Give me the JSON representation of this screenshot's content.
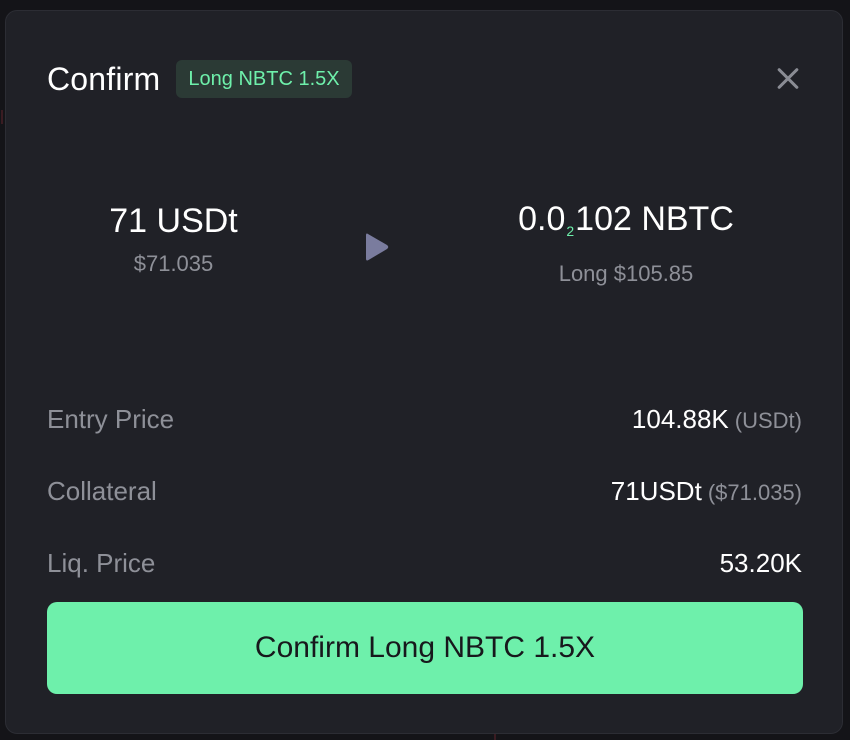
{
  "modal": {
    "title": "Confirm",
    "badge": "Long NBTC 1.5X",
    "close_icon": "close-icon"
  },
  "swap": {
    "from_amount": "71 USDt",
    "from_value": "$71.035",
    "arrow_icon": "play-arrow-icon",
    "to_amount_prefix": "0.0",
    "to_amount_subscript": "2",
    "to_amount_suffix": "102 NBTC",
    "to_value": "Long $105.85"
  },
  "details": [
    {
      "label": "Entry Price",
      "value": "104.88K",
      "value_sub": "(USDt)"
    },
    {
      "label": "Collateral",
      "value": "71USDt",
      "value_sub": "($71.035)"
    },
    {
      "label": "Liq. Price",
      "value": "53.20K",
      "value_sub": ""
    }
  ],
  "confirm_button": "Confirm Long NBTC 1.5X",
  "colors": {
    "accent": "#6ef0ab",
    "modal_bg": "#202127",
    "badge_bg": "#2b3a35",
    "muted_text": "#8e9098",
    "arrow": "#7a7c9e"
  }
}
